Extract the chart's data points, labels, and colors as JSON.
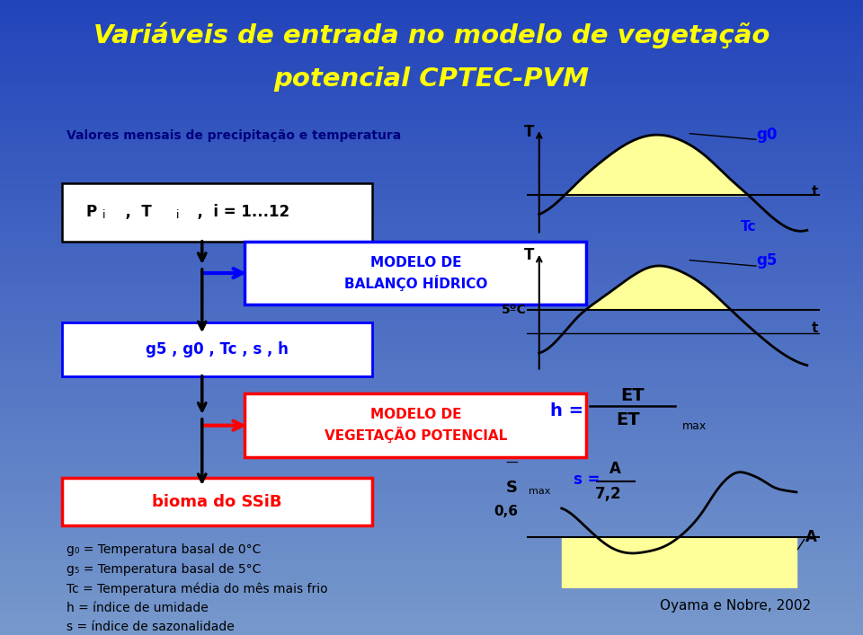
{
  "title_line1": "Variáveis de entrada no modelo de vegetação",
  "title_line2": "potencial CPTEC-PVM",
  "title_color": "#FFFF00",
  "subtitle": "Valores mensais de precipitação e temperatura",
  "box_blue_text": "MODELO DE\nBALANÇO HÍDRICO",
  "box_red_text": "MODELO DE\nVEGETAÇÃO POTENCIAL",
  "box3_text": "bioma do SSiB",
  "legend_lines": [
    "g₀ = Temperatura basal de 0°C",
    "g₅ = Temperatura basal de 5°C",
    "Tc = Temperatura média do mês mais frio",
    "h = índice de umidade",
    "s = índice de sazonalidade"
  ],
  "citation": "Oyama e Nobre, 2002",
  "yellow_fill": "#FFFF99",
  "bg_top": "#2244BB",
  "bg_bottom": "#7799CC"
}
